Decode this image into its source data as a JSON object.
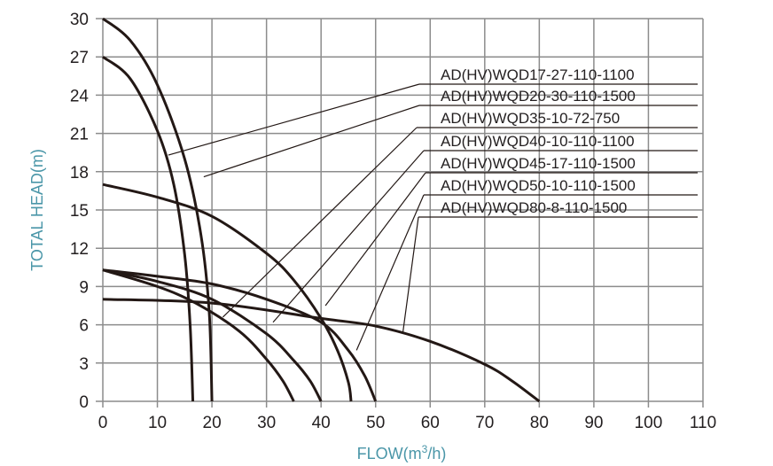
{
  "chart_data": {
    "type": "line",
    "title": "",
    "xlabel": "FLOW(m³/h)",
    "ylabel": "TOTAL HEAD(m)",
    "xlim": [
      0,
      110
    ],
    "ylim": [
      0,
      30
    ],
    "grid": true,
    "xticks": [
      0,
      10,
      20,
      30,
      40,
      50,
      60,
      70,
      80,
      90,
      100,
      110
    ],
    "yticks": [
      0,
      3,
      6,
      9,
      12,
      15,
      18,
      21,
      24,
      27,
      30
    ],
    "series": [
      {
        "name": "AD(HV)WQD17-27-110-1100",
        "pointer": [
          12,
          19.3
        ],
        "points": [
          [
            0,
            27
          ],
          [
            5,
            25.3
          ],
          [
            10,
            21.2
          ],
          [
            13,
            17
          ],
          [
            15,
            11.5
          ],
          [
            16,
            6
          ],
          [
            16.5,
            0
          ]
        ]
      },
      {
        "name": "AD(HV)WQD20-30-110-1500",
        "pointer": [
          18.5,
          17.6
        ],
        "points": [
          [
            0,
            30
          ],
          [
            5,
            28.3
          ],
          [
            10,
            24.8
          ],
          [
            15,
            19
          ],
          [
            18,
            13
          ],
          [
            19.5,
            7
          ],
          [
            20,
            0
          ]
        ]
      },
      {
        "name": "AD(HV)WQD35-10-72-750",
        "pointer": [
          22,
          6.6
        ],
        "points": [
          [
            0,
            10.3
          ],
          [
            10,
            9
          ],
          [
            17,
            7.7
          ],
          [
            25,
            5.5
          ],
          [
            30,
            3.3
          ],
          [
            33,
            1.6
          ],
          [
            35,
            0
          ]
        ]
      },
      {
        "name": "AD(HV)WQD40-10-110-1100",
        "pointer": [
          31.2,
          6.2
        ],
        "points": [
          [
            0,
            10.3
          ],
          [
            10,
            9.4
          ],
          [
            20,
            8
          ],
          [
            30,
            5.3
          ],
          [
            35,
            3.2
          ],
          [
            38,
            1.6
          ],
          [
            40,
            0
          ]
        ]
      },
      {
        "name": "AD(HV)WQD45-17-110-1500",
        "pointer": [
          40.8,
          7.5
        ],
        "points": [
          [
            0,
            17
          ],
          [
            10,
            16
          ],
          [
            20,
            14.5
          ],
          [
            30,
            11.6
          ],
          [
            35,
            9.5
          ],
          [
            40,
            6.5
          ],
          [
            43,
            4
          ],
          [
            45,
            1.5
          ],
          [
            45.5,
            0
          ]
        ]
      },
      {
        "name": "AD(HV)WQD50-10-110-1500",
        "pointer": [
          46.5,
          4
        ],
        "points": [
          [
            0,
            10.3
          ],
          [
            10,
            9.8
          ],
          [
            20,
            9.2
          ],
          [
            30,
            8
          ],
          [
            40,
            6.2
          ],
          [
            45,
            4
          ],
          [
            48,
            2
          ],
          [
            50,
            0
          ]
        ]
      },
      {
        "name": "AD(HV)WQD80-8-110-1500",
        "pointer": [
          55,
          5.4
        ],
        "points": [
          [
            0,
            8
          ],
          [
            20,
            7.7
          ],
          [
            40,
            6.5
          ],
          [
            50,
            5.9
          ],
          [
            60,
            4.7
          ],
          [
            70,
            2.9
          ],
          [
            75,
            1.6
          ],
          [
            80,
            0
          ]
        ]
      }
    ]
  }
}
